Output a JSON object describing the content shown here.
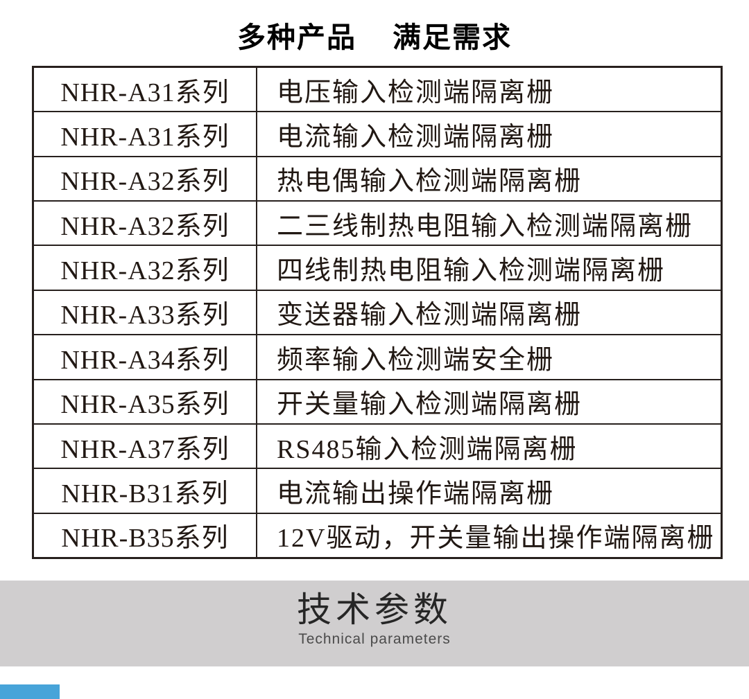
{
  "page_title": {
    "part1": "多种产品",
    "part2": "满足需求"
  },
  "product_table": {
    "rows": [
      {
        "series": "NHR-A31系列",
        "description": "电压输入检测端隔离栅"
      },
      {
        "series": "NHR-A31系列",
        "description": "电流输入检测端隔离栅"
      },
      {
        "series": "NHR-A32系列",
        "description": "热电偶输入检测端隔离栅"
      },
      {
        "series": "NHR-A32系列",
        "description": "二三线制热电阻输入检测端隔离栅"
      },
      {
        "series": "NHR-A32系列",
        "description": "四线制热电阻输入检测端隔离栅"
      },
      {
        "series": "NHR-A33系列",
        "description": "变送器输入检测端隔离栅"
      },
      {
        "series": "NHR-A34系列",
        "description": "频率输入检测端安全栅"
      },
      {
        "series": "NHR-A35系列",
        "description": "开关量输入检测端隔离栅"
      },
      {
        "series": "NHR-A37系列",
        "description": "RS485输入检测端隔离栅"
      },
      {
        "series": "NHR-B31系列",
        "description": "电流输出操作端隔离栅"
      },
      {
        "series": "NHR-B35系列",
        "description": "12V驱动，开关量输出操作端隔离栅"
      }
    ]
  },
  "section_banner": {
    "title": "技术参数",
    "subtitle": "Technical parameters"
  },
  "colors": {
    "table_border": "#27201d",
    "banner_bg": "#d0cecf",
    "accent_blue": "#47a4d9"
  }
}
